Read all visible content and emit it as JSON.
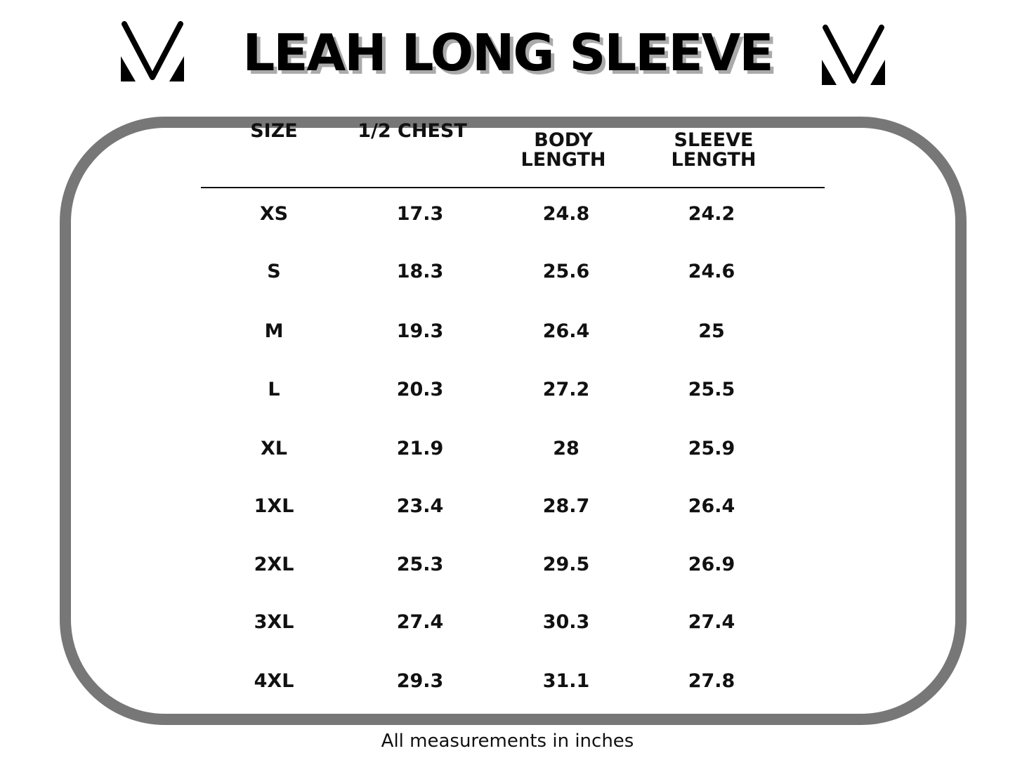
{
  "title": "LEAH LONG SLEEVE",
  "logo": {
    "icon": "mv-brand-logo"
  },
  "table": {
    "headers": [
      [
        "",
        "SIZE"
      ],
      [
        "",
        "1/2 CHEST"
      ],
      [
        "BODY",
        "LENGTH"
      ],
      [
        "SLEEVE",
        "LENGTH"
      ]
    ],
    "rows": [
      [
        "XS",
        "17.3",
        "24.8",
        "24.2"
      ],
      [
        "S",
        "18.3",
        "25.6",
        "24.6"
      ],
      [
        "M",
        "19.3",
        "26.4",
        "25"
      ],
      [
        "L",
        "20.3",
        "27.2",
        "25.5"
      ],
      [
        "XL",
        "21.9",
        "28",
        "25.9"
      ],
      [
        "1XL",
        "23.4",
        "28.7",
        "26.4"
      ],
      [
        "2XL",
        "25.3",
        "29.5",
        "26.9"
      ],
      [
        "3XL",
        "27.4",
        "30.3",
        "27.4"
      ],
      [
        "4XL",
        "29.3",
        "31.1",
        "27.8"
      ]
    ]
  },
  "colors": {
    "frame": "#777777",
    "text": "#111111",
    "title_shadow": "#aaaaaa"
  },
  "footnote": "All measurements in inches"
}
